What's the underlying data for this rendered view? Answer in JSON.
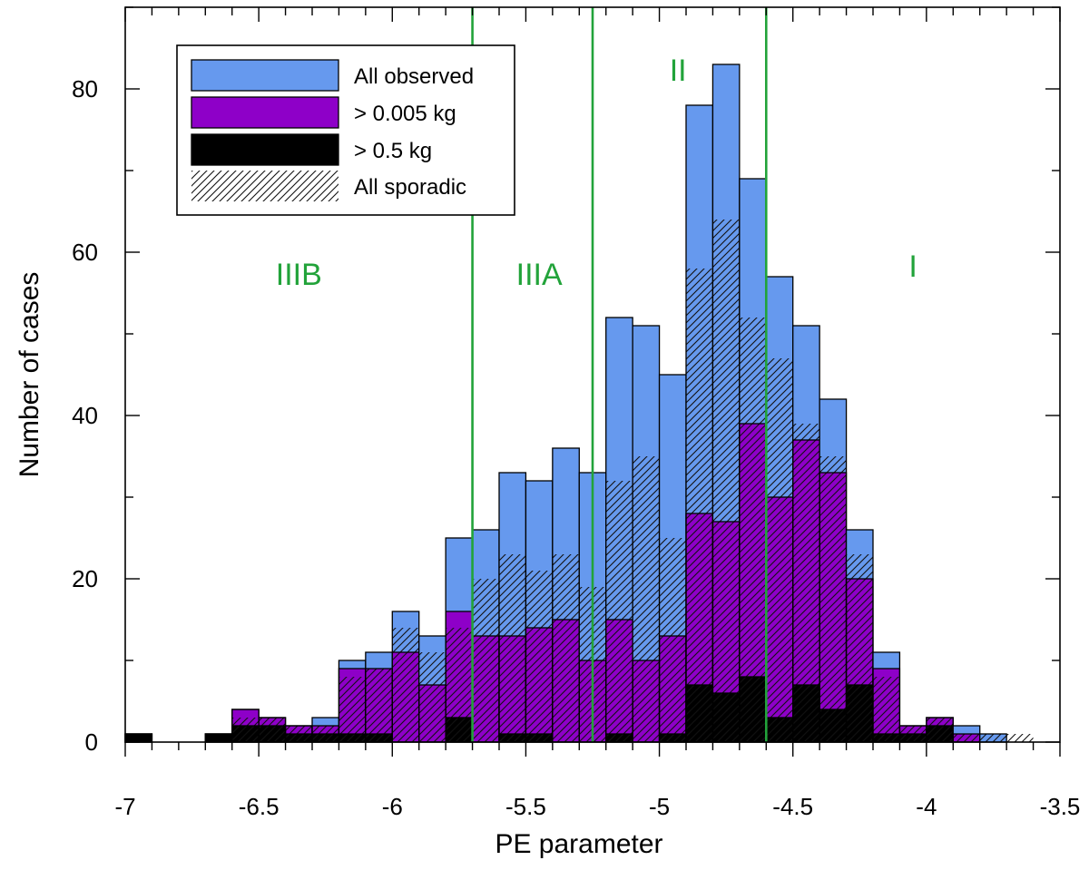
{
  "chart_data": {
    "type": "bar",
    "xlabel": "PE parameter",
    "ylabel": "Number of cases",
    "xlim": [
      -7,
      -3.5
    ],
    "ylim": [
      0,
      90
    ],
    "bin_width": 0.1,
    "x_ticks": [
      -7,
      -6.5,
      -6,
      -5.5,
      -5,
      -4.5,
      -4,
      -3.5
    ],
    "x_tick_labels": [
      "-7",
      "-6.5",
      "-6",
      "-5.5",
      "-5",
      "-4.5",
      "-4",
      "-3.5"
    ],
    "y_ticks": [
      0,
      20,
      40,
      60,
      80
    ],
    "y_tick_labels": [
      "0",
      "20",
      "40",
      "60",
      "80"
    ],
    "bin_starts": [
      -7.0,
      -6.9,
      -6.8,
      -6.7,
      -6.6,
      -6.5,
      -6.4,
      -6.3,
      -6.2,
      -6.1,
      -6.0,
      -5.9,
      -5.8,
      -5.7,
      -5.6,
      -5.5,
      -5.4,
      -5.3,
      -5.2,
      -5.1,
      -5.0,
      -4.9,
      -4.8,
      -4.7,
      -4.6,
      -4.5,
      -4.4,
      -4.3,
      -4.2,
      -4.1,
      -4.0,
      -3.9,
      -3.8,
      -3.7
    ],
    "series": [
      {
        "name": "All observed",
        "color": "#6699ee",
        "values": [
          1,
          0,
          0,
          1,
          4,
          3,
          2,
          3,
          10,
          11,
          16,
          13,
          25,
          26,
          33,
          32,
          36,
          33,
          52,
          51,
          45,
          78,
          83,
          69,
          57,
          51,
          42,
          26,
          11,
          2,
          3,
          2,
          1,
          0
        ]
      },
      {
        "name": "> 0.005 kg",
        "color": "#8e00c8",
        "values": [
          1,
          0,
          0,
          1,
          4,
          3,
          2,
          2,
          9,
          9,
          11,
          7,
          16,
          13,
          13,
          14,
          15,
          10,
          15,
          10,
          13,
          28,
          27,
          39,
          30,
          37,
          33,
          20,
          9,
          2,
          3,
          1,
          0,
          0
        ]
      },
      {
        "name": "> 0.5 kg",
        "color": "#000000",
        "values": [
          1,
          0,
          0,
          1,
          2,
          2,
          1,
          1,
          1,
          1,
          0,
          0,
          3,
          0,
          1,
          1,
          0,
          0,
          1,
          0,
          1,
          7,
          6,
          8,
          3,
          7,
          4,
          7,
          1,
          1,
          2,
          0,
          0,
          0
        ]
      },
      {
        "name": "All sporadic",
        "pattern": "hatch",
        "values": [
          0,
          0,
          0,
          0,
          3,
          3,
          2,
          2,
          8,
          9,
          14,
          11,
          14,
          20,
          23,
          21,
          23,
          19,
          32,
          35,
          25,
          58,
          64,
          52,
          47,
          39,
          35,
          23,
          8,
          2,
          3,
          1,
          1,
          1
        ]
      }
    ],
    "region_lines": [
      -5.7,
      -5.25,
      -4.6
    ],
    "region_labels": [
      {
        "text": "IIIB",
        "x": -6.35,
        "y": 56
      },
      {
        "text": "IIIA",
        "x": -5.45,
        "y": 56
      },
      {
        "text": "II",
        "x": -4.93,
        "y": 81
      },
      {
        "text": "I",
        "x": -4.05,
        "y": 57
      }
    ],
    "region_color": "#22a33a",
    "legend_position": "top-left"
  }
}
